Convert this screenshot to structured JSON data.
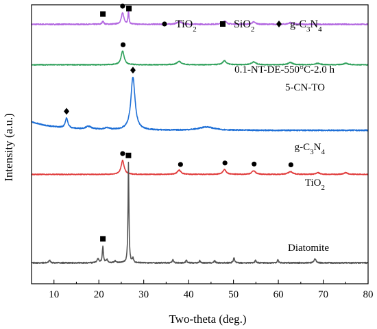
{
  "chart_data": {
    "type": "line",
    "xlabel": "Two-theta (deg.)",
    "ylabel": "Intensity (a.u.)",
    "xlim": [
      5,
      80
    ],
    "xticks": [
      10,
      20,
      30,
      40,
      50,
      60,
      70,
      80
    ],
    "tick_labels": [
      "10",
      "20",
      "30",
      "40",
      "50",
      "60",
      "70",
      "80"
    ],
    "legend": {
      "placement": "top-right",
      "entries": [
        {
          "marker": "circle",
          "main": "TiO",
          "sub": "2",
          "rest": "",
          "sub2": "",
          "tail": ""
        },
        {
          "marker": "square",
          "main": "SiO",
          "sub": "2",
          "rest": "",
          "sub2": "",
          "tail": ""
        },
        {
          "marker": "diamond",
          "main": "g-C",
          "sub": "3",
          "rest": "N",
          "sub2": "4",
          "tail": ""
        }
      ]
    },
    "series": [
      {
        "name": "0.1-NT-DE-550°C-2.0 h",
        "color": "#b266e0",
        "baseline": 0.93,
        "noise": 0.004,
        "peaks": [
          [
            20.9,
            0.012,
            0.2
          ],
          [
            25.3,
            0.04,
            0.35
          ],
          [
            26.6,
            0.05,
            0.12
          ],
          [
            37.9,
            0.01,
            0.6
          ],
          [
            48.0,
            0.012,
            0.5
          ],
          [
            54.5,
            0.008,
            0.5
          ],
          [
            62.7,
            0.006,
            0.5
          ]
        ],
        "markers": [
          [
            "square",
            20.9
          ],
          [
            "circle",
            25.3
          ],
          [
            "square",
            26.7
          ]
        ]
      },
      {
        "name": "5-CN-TO",
        "color": "#2ea05a",
        "baseline": 0.785,
        "noise": 0.003,
        "peaks": [
          [
            25.3,
            0.05,
            0.4
          ],
          [
            37.9,
            0.012,
            0.6
          ],
          [
            48.0,
            0.014,
            0.5
          ],
          [
            54.5,
            0.01,
            0.6
          ],
          [
            62.7,
            0.008,
            0.6
          ],
          [
            68.8,
            0.005,
            0.6
          ],
          [
            75.0,
            0.005,
            0.6
          ]
        ],
        "markers": [
          [
            "circle",
            25.4
          ]
        ]
      },
      {
        "name": "g-C3N4",
        "label_parts": {
          "main": "g-C",
          "sub": "3",
          "rest": "N",
          "sub2": "4"
        },
        "color": "#1e6fd6",
        "baseline": 0.55,
        "noise": 0.004,
        "decay": 0.03,
        "peaks": [
          [
            12.8,
            0.035,
            0.35
          ],
          [
            17.7,
            0.01,
            0.8
          ],
          [
            21.8,
            0.006,
            0.8
          ],
          [
            27.6,
            0.19,
            0.55
          ],
          [
            44.0,
            0.012,
            2.0
          ]
        ],
        "markers": [
          [
            "diamond",
            12.8
          ],
          [
            "diamond",
            27.6
          ]
        ]
      },
      {
        "name": "TiO2",
        "label_parts": {
          "main": "TiO",
          "sub": "2",
          "rest": "",
          "sub2": ""
        },
        "color": "#e03a3a",
        "baseline": 0.392,
        "noise": 0.003,
        "peaks": [
          [
            25.3,
            0.05,
            0.4
          ],
          [
            37.9,
            0.015,
            0.5
          ],
          [
            48.0,
            0.017,
            0.45
          ],
          [
            54.5,
            0.013,
            0.5
          ],
          [
            62.7,
            0.01,
            0.6
          ],
          [
            68.8,
            0.006,
            0.5
          ],
          [
            75.0,
            0.006,
            0.5
          ]
        ],
        "markers": [
          [
            "circle",
            25.3
          ],
          [
            "circle",
            38.2
          ],
          [
            "circle",
            48.1
          ],
          [
            "circle",
            54.6
          ],
          [
            "circle",
            62.8
          ]
        ]
      },
      {
        "name": "Diatomite",
        "color": "#555555",
        "baseline": 0.075,
        "noise": 0.004,
        "peaks": [
          [
            9.0,
            0.01,
            0.2
          ],
          [
            19.8,
            0.015,
            0.25
          ],
          [
            20.9,
            0.06,
            0.15
          ],
          [
            21.8,
            0.012,
            0.2
          ],
          [
            23.6,
            0.008,
            0.2
          ],
          [
            26.6,
            0.36,
            0.12
          ],
          [
            27.6,
            0.015,
            0.15
          ],
          [
            36.5,
            0.012,
            0.15
          ],
          [
            39.5,
            0.01,
            0.15
          ],
          [
            42.5,
            0.008,
            0.15
          ],
          [
            45.8,
            0.008,
            0.15
          ],
          [
            50.1,
            0.02,
            0.15
          ],
          [
            54.9,
            0.01,
            0.15
          ],
          [
            59.9,
            0.012,
            0.15
          ],
          [
            68.1,
            0.012,
            0.2
          ],
          [
            68.3,
            0.006,
            0.15
          ]
        ],
        "markers": [
          [
            "square",
            20.9
          ],
          [
            "square",
            26.6
          ]
        ]
      }
    ]
  }
}
